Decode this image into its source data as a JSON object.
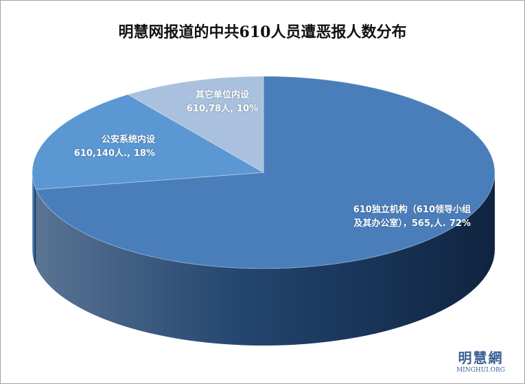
{
  "chart_data": {
    "type": "pie3d",
    "title": "明慧网报道的中共610人员遭恶报人数分布",
    "categories": [
      "610独立机构（610领导小组及其办公室），",
      "公安系统内设610,",
      "其它单位内设610,"
    ],
    "values": [
      565,
      140,
      78
    ],
    "value_labels": [
      "565,人.",
      "140人.,",
      "78人,"
    ],
    "percents": [
      72,
      18,
      10
    ],
    "percent_labels": [
      "72%",
      "18%",
      "10%"
    ],
    "colors": [
      "#4a7ebb",
      "#5b97d3",
      "#a9c1de"
    ],
    "side_colors": [
      "#23456f",
      "#3a6fa6",
      "#7f9cc2"
    ]
  },
  "watermark": {
    "name": "明慧網",
    "url": "MINGHUI.ORG"
  }
}
